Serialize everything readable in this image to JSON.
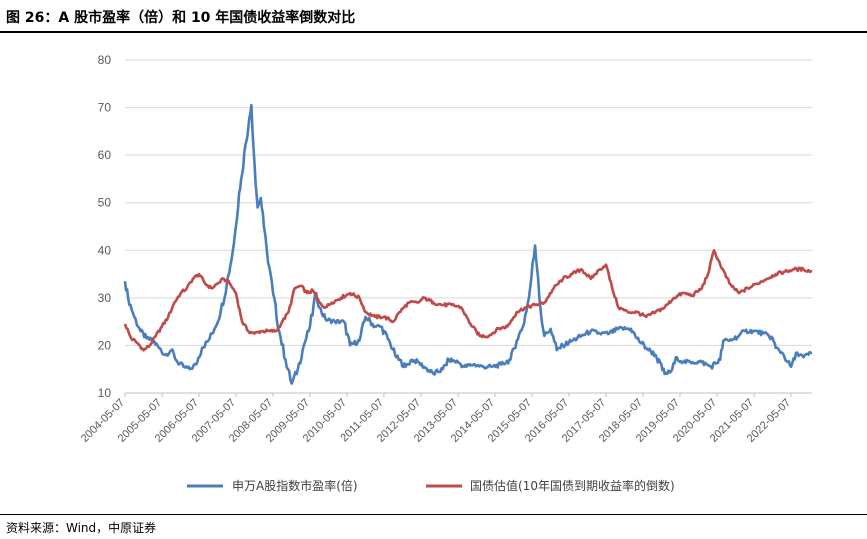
{
  "header": {
    "title": "图 26：A 股市盈率（倍）和 10 年国债收益率倒数对比"
  },
  "footer": {
    "source": "资料来源：Wind，中原证券"
  },
  "colors": {
    "series_pe": "#4a7ebb",
    "series_bond": "#be4b48",
    "grid": "#d9d9d9",
    "axis": "#bfbfbf"
  },
  "chart_data": {
    "type": "line",
    "title": "图 26：A 股市盈率（倍）和 10 年国债收益率倒数对比",
    "xlabel": "",
    "ylabel": "",
    "ylim": [
      10,
      80
    ],
    "yticks": [
      10,
      20,
      30,
      40,
      50,
      60,
      70,
      80
    ],
    "xlim": [
      "2004-05-07",
      "2022-11-30"
    ],
    "xticks": [
      "2004-05-07",
      "2005-05-07",
      "2006-05-07",
      "2007-05-07",
      "2008-05-07",
      "2009-05-07",
      "2010-05-07",
      "2011-05-07",
      "2012-05-07",
      "2013-05-07",
      "2014-05-07",
      "2015-05-07",
      "2016-05-07",
      "2017-05-07",
      "2018-05-07",
      "2019-05-07",
      "2020-05-07",
      "2021-05-07",
      "2022-05-07"
    ],
    "grid": "horizontal",
    "legend_position": "bottom",
    "series": [
      {
        "name": "申万A股指数市盈率(倍)",
        "color": "#4a7ebb",
        "points": [
          [
            "2004-05-07",
            33.5
          ],
          [
            "2004-06-07",
            30
          ],
          [
            "2004-08-07",
            26
          ],
          [
            "2004-10-07",
            23
          ],
          [
            "2004-12-07",
            21.5
          ],
          [
            "2005-02-07",
            21
          ],
          [
            "2005-04-07",
            19.5
          ],
          [
            "2005-06-07",
            18
          ],
          [
            "2005-08-07",
            19
          ],
          [
            "2005-10-07",
            16.5
          ],
          [
            "2005-12-07",
            15.5
          ],
          [
            "2006-02-07",
            15
          ],
          [
            "2006-04-07",
            16
          ],
          [
            "2006-06-07",
            19.5
          ],
          [
            "2006-08-07",
            21
          ],
          [
            "2006-10-07",
            23.5
          ],
          [
            "2006-12-07",
            27
          ],
          [
            "2007-02-07",
            33
          ],
          [
            "2007-04-07",
            40
          ],
          [
            "2007-05-07",
            45
          ],
          [
            "2007-06-07",
            52
          ],
          [
            "2007-07-07",
            56
          ],
          [
            "2007-08-07",
            62
          ],
          [
            "2007-09-07",
            66
          ],
          [
            "2007-10-07",
            70.5
          ],
          [
            "2007-11-07",
            58
          ],
          [
            "2007-12-07",
            49
          ],
          [
            "2008-01-07",
            51
          ],
          [
            "2008-02-07",
            45
          ],
          [
            "2008-03-07",
            40
          ],
          [
            "2008-05-07",
            31
          ],
          [
            "2008-07-07",
            23
          ],
          [
            "2008-09-07",
            17
          ],
          [
            "2008-11-07",
            12
          ],
          [
            "2009-01-07",
            15
          ],
          [
            "2009-03-07",
            20
          ],
          [
            "2009-05-07",
            24
          ],
          [
            "2009-07-07",
            31
          ],
          [
            "2009-08-07",
            28
          ],
          [
            "2009-10-07",
            25.5
          ],
          [
            "2010-01-07",
            25
          ],
          [
            "2010-04-07",
            25
          ],
          [
            "2010-06-07",
            20
          ],
          [
            "2010-09-07",
            21
          ],
          [
            "2010-11-07",
            26
          ],
          [
            "2011-02-07",
            24
          ],
          [
            "2011-04-07",
            24
          ],
          [
            "2011-07-07",
            20.5
          ],
          [
            "2011-09-07",
            17.5
          ],
          [
            "2011-12-07",
            15.5
          ],
          [
            "2012-02-07",
            17
          ],
          [
            "2012-04-07",
            16.5
          ],
          [
            "2012-06-07",
            15.5
          ],
          [
            "2012-09-07",
            14
          ],
          [
            "2012-12-07",
            15
          ],
          [
            "2013-02-07",
            17
          ],
          [
            "2013-05-07",
            16.5
          ],
          [
            "2013-07-07",
            15.5
          ],
          [
            "2013-10-07",
            16
          ],
          [
            "2014-01-07",
            15.5
          ],
          [
            "2014-04-07",
            15.5
          ],
          [
            "2014-07-07",
            16
          ],
          [
            "2014-10-07",
            17
          ],
          [
            "2014-12-07",
            21
          ],
          [
            "2015-02-07",
            24
          ],
          [
            "2015-04-07",
            30
          ],
          [
            "2015-06-07",
            41
          ],
          [
            "2015-07-07",
            34
          ],
          [
            "2015-08-07",
            26
          ],
          [
            "2015-09-07",
            22
          ],
          [
            "2015-11-07",
            23.5
          ],
          [
            "2016-01-07",
            19
          ],
          [
            "2016-03-07",
            20
          ],
          [
            "2016-06-07",
            21
          ],
          [
            "2016-09-07",
            22
          ],
          [
            "2016-12-07",
            23
          ],
          [
            "2017-03-07",
            22.5
          ],
          [
            "2017-06-07",
            22.5
          ],
          [
            "2017-09-07",
            23.5
          ],
          [
            "2018-01-07",
            23.5
          ],
          [
            "2018-03-07",
            21.5
          ],
          [
            "2018-06-07",
            19.5
          ],
          [
            "2018-09-07",
            18
          ],
          [
            "2018-12-07",
            14
          ],
          [
            "2019-02-07",
            14.5
          ],
          [
            "2019-04-07",
            17.5
          ],
          [
            "2019-06-07",
            16.5
          ],
          [
            "2019-09-07",
            16.5
          ],
          [
            "2019-12-07",
            16.5
          ],
          [
            "2020-03-07",
            15.5
          ],
          [
            "2020-06-07",
            17
          ],
          [
            "2020-07-07",
            21
          ],
          [
            "2020-09-07",
            21
          ],
          [
            "2020-12-07",
            22
          ],
          [
            "2021-02-07",
            23
          ],
          [
            "2021-05-07",
            23
          ],
          [
            "2021-08-07",
            22.5
          ],
          [
            "2021-11-07",
            21.5
          ],
          [
            "2021-12-07",
            19.5
          ],
          [
            "2022-02-07",
            18.5
          ],
          [
            "2022-04-07",
            16.5
          ],
          [
            "2022-05-07",
            15.5
          ],
          [
            "2022-07-07",
            18.5
          ],
          [
            "2022-09-07",
            17.5
          ],
          [
            "2022-11-30",
            18.5
          ]
        ]
      },
      {
        "name": "国债估值(10年国债到期收益率的倒数)",
        "color": "#be4b48",
        "points": [
          [
            "2004-05-07",
            24.5
          ],
          [
            "2004-07-07",
            21.5
          ],
          [
            "2004-09-07",
            20.5
          ],
          [
            "2004-11-07",
            19
          ],
          [
            "2005-01-07",
            20
          ],
          [
            "2005-03-07",
            22
          ],
          [
            "2005-05-07",
            24
          ],
          [
            "2005-07-07",
            26
          ],
          [
            "2005-09-07",
            29
          ],
          [
            "2005-11-07",
            31
          ],
          [
            "2006-01-07",
            32
          ],
          [
            "2006-03-07",
            34
          ],
          [
            "2006-05-07",
            35
          ],
          [
            "2006-07-07",
            33
          ],
          [
            "2006-09-07",
            32
          ],
          [
            "2006-11-07",
            33
          ],
          [
            "2007-01-07",
            34
          ],
          [
            "2007-03-07",
            33
          ],
          [
            "2007-05-07",
            31
          ],
          [
            "2007-07-07",
            25
          ],
          [
            "2007-09-07",
            23
          ],
          [
            "2007-11-07",
            22.5
          ],
          [
            "2008-01-07",
            23
          ],
          [
            "2008-04-07",
            23
          ],
          [
            "2008-06-07",
            23
          ],
          [
            "2008-08-07",
            25
          ],
          [
            "2008-10-07",
            27
          ],
          [
            "2008-12-07",
            32
          ],
          [
            "2009-02-07",
            32.5
          ],
          [
            "2009-04-07",
            31
          ],
          [
            "2009-06-07",
            31.5
          ],
          [
            "2009-08-07",
            29
          ],
          [
            "2009-10-07",
            28
          ],
          [
            "2009-12-07",
            29
          ],
          [
            "2010-03-07",
            30
          ],
          [
            "2010-06-07",
            31
          ],
          [
            "2010-09-07",
            30
          ],
          [
            "2010-11-07",
            27
          ],
          [
            "2011-02-07",
            26
          ],
          [
            "2011-05-07",
            26
          ],
          [
            "2011-08-07",
            25
          ],
          [
            "2011-10-07",
            27
          ],
          [
            "2012-01-07",
            29
          ],
          [
            "2012-04-07",
            29
          ],
          [
            "2012-06-07",
            30
          ],
          [
            "2012-09-07",
            29
          ],
          [
            "2012-12-07",
            28.5
          ],
          [
            "2013-03-07",
            28.5
          ],
          [
            "2013-06-07",
            28
          ],
          [
            "2013-09-07",
            24.5
          ],
          [
            "2013-12-07",
            22
          ],
          [
            "2014-03-07",
            22
          ],
          [
            "2014-06-07",
            23.5
          ],
          [
            "2014-09-07",
            24
          ],
          [
            "2014-12-07",
            27
          ],
          [
            "2015-03-07",
            28
          ],
          [
            "2015-06-07",
            28.5
          ],
          [
            "2015-09-07",
            29
          ],
          [
            "2015-12-07",
            32
          ],
          [
            "2016-03-07",
            34
          ],
          [
            "2016-06-07",
            35
          ],
          [
            "2016-09-07",
            36
          ],
          [
            "2016-12-07",
            34
          ],
          [
            "2017-03-07",
            36
          ],
          [
            "2017-05-07",
            37
          ],
          [
            "2017-07-07",
            32
          ],
          [
            "2017-09-07",
            28
          ],
          [
            "2017-12-07",
            27
          ],
          [
            "2018-03-07",
            27
          ],
          [
            "2018-06-07",
            26
          ],
          [
            "2018-09-07",
            27
          ],
          [
            "2018-12-07",
            28
          ],
          [
            "2019-03-07",
            30
          ],
          [
            "2019-06-07",
            31
          ],
          [
            "2019-09-07",
            30.5
          ],
          [
            "2019-12-07",
            32
          ],
          [
            "2020-02-07",
            35
          ],
          [
            "2020-04-07",
            40
          ],
          [
            "2020-06-07",
            37
          ],
          [
            "2020-09-07",
            33
          ],
          [
            "2020-12-07",
            31
          ],
          [
            "2021-03-07",
            32
          ],
          [
            "2021-06-07",
            33
          ],
          [
            "2021-09-07",
            34
          ],
          [
            "2021-12-07",
            35
          ],
          [
            "2022-03-07",
            35.5
          ],
          [
            "2022-06-07",
            36
          ],
          [
            "2022-09-07",
            36
          ],
          [
            "2022-11-30",
            35.5
          ]
        ]
      }
    ]
  }
}
